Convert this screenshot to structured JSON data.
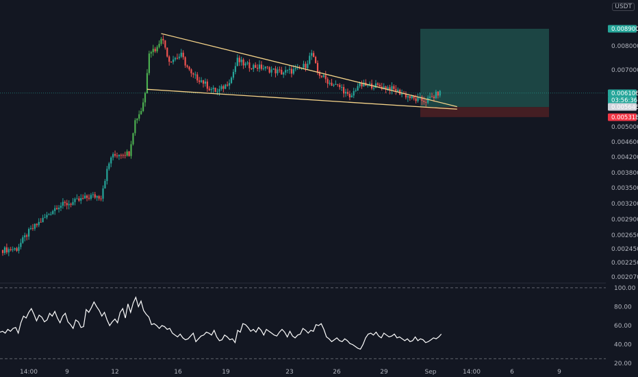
{
  "currency": "USDT",
  "colors": {
    "background": "#131722",
    "up": "#26a69a",
    "down": "#ef5350",
    "up_bright": "#4caf50",
    "trendline": "#f7d58a",
    "rsi": "#ffffff",
    "target_zone": "#1f4e4a",
    "stop_zone": "#4a1f24"
  },
  "chart_data": [
    {
      "type": "candlestick",
      "ylim": [
        0.00207,
        0.0099
      ],
      "price_axis_ticks": [
        "0.008000",
        "0.007000",
        "0.005000",
        "0.004600",
        "0.004200",
        "0.003800",
        "0.003500",
        "0.003200",
        "0.002900",
        "0.002650",
        "0.002450",
        "0.002250",
        "0.002070"
      ],
      "date_axis_ticks": [
        "14:00",
        "9",
        "12",
        "16",
        "19",
        "23",
        "26",
        "29",
        "Sep",
        "14:00",
        "6",
        "9"
      ],
      "price_labels": [
        {
          "text": "0.008900",
          "value": 0.0089,
          "role": "target"
        },
        {
          "text": "0.006106",
          "value": 0.006106,
          "role": "last"
        },
        {
          "text": "03:56:36",
          "value": 0.00593,
          "role": "countdown"
        },
        {
          "text": "0.005646",
          "value": 0.005646,
          "role": "entry"
        },
        {
          "text": "0.005318",
          "value": 0.005318,
          "role": "stop"
        }
      ],
      "position_zones": {
        "target_top": 0.0089,
        "entry": 0.005646,
        "stop": 0.005318
      },
      "trendlines": [
        {
          "name": "upper",
          "p1": {
            "i": 79,
            "v": 0.00865
          },
          "p2": {
            "i": 218,
            "v": 0.00575
          }
        },
        {
          "name": "lower",
          "p1": {
            "i": 72,
            "v": 0.00625
          },
          "p2": {
            "i": 218,
            "v": 0.0056
          }
        }
      ],
      "candles_ohlc_per_index": "generated-by-script"
    },
    {
      "type": "line",
      "series_name": "",
      "ylim": [
        15,
        105
      ],
      "y_ticks": [
        "100.00",
        "80.00",
        "60.00",
        "40.00",
        "20.00"
      ],
      "reference_lines": [
        100,
        25
      ],
      "values": [
        53,
        54,
        52,
        56,
        54,
        57,
        58,
        52,
        63,
        70,
        68,
        74,
        78,
        72,
        65,
        71,
        69,
        64,
        66,
        73,
        70,
        75,
        68,
        63,
        70,
        73,
        64,
        61,
        57,
        66,
        64,
        58,
        59,
        77,
        74,
        79,
        85,
        80,
        76,
        70,
        74,
        66,
        60,
        64,
        67,
        63,
        74,
        78,
        68,
        83,
        74,
        84,
        90,
        80,
        86,
        76,
        72,
        69,
        61,
        62,
        60,
        57,
        60,
        59,
        56,
        57,
        52,
        50,
        48,
        51,
        47,
        45,
        46,
        49,
        52,
        43,
        46,
        49,
        50,
        53,
        52,
        50,
        55,
        48,
        44,
        45,
        50,
        48,
        45,
        46,
        42,
        55,
        53,
        62,
        61,
        58,
        54,
        56,
        53,
        58,
        55,
        50,
        56,
        54,
        52,
        50,
        49,
        53,
        56,
        53,
        48,
        54,
        49,
        47,
        50,
        51,
        57,
        55,
        52,
        55,
        54,
        61,
        60,
        62,
        56,
        48,
        46,
        43,
        45,
        47,
        44,
        43,
        46,
        44,
        41,
        40,
        38,
        36,
        35,
        40,
        47,
        51,
        52,
        50,
        53,
        49,
        47,
        52,
        50,
        48,
        49,
        51,
        47,
        48,
        46,
        44,
        46,
        43,
        44,
        48,
        44,
        46,
        45,
        42,
        43,
        45,
        47,
        46,
        48,
        51
      ]
    }
  ]
}
